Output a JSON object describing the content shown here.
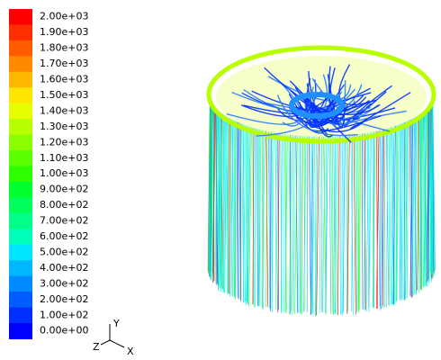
{
  "legend": {
    "items": [
      {
        "label": "2.00e+03",
        "color": "#ff0000"
      },
      {
        "label": "1.90e+03",
        "color": "#ff2e00"
      },
      {
        "label": "1.80e+03",
        "color": "#ff5c00"
      },
      {
        "label": "1.70e+03",
        "color": "#ff8a00"
      },
      {
        "label": "1.60e+03",
        "color": "#ffb800"
      },
      {
        "label": "1.50e+03",
        "color": "#ffe600"
      },
      {
        "label": "1.40e+03",
        "color": "#e6ff00"
      },
      {
        "label": "1.30e+03",
        "color": "#b8ff00"
      },
      {
        "label": "1.20e+03",
        "color": "#8aff00"
      },
      {
        "label": "1.10e+03",
        "color": "#5cff00"
      },
      {
        "label": "1.00e+03",
        "color": "#2eff00"
      },
      {
        "label": "9.00e+02",
        "color": "#00ff2e"
      },
      {
        "label": "8.00e+02",
        "color": "#00ff5c"
      },
      {
        "label": "7.00e+02",
        "color": "#00ff8a"
      },
      {
        "label": "6.00e+02",
        "color": "#00ffb8"
      },
      {
        "label": "5.00e+02",
        "color": "#00e6ff"
      },
      {
        "label": "4.00e+02",
        "color": "#00b8ff"
      },
      {
        "label": "3.00e+02",
        "color": "#008aff"
      },
      {
        "label": "2.00e+02",
        "color": "#005cff"
      },
      {
        "label": "1.00e+02",
        "color": "#002eff"
      },
      {
        "label": "0.00e+00",
        "color": "#0000ff"
      }
    ]
  },
  "axes": {
    "x": "X",
    "y": "Y",
    "z": "Z"
  }
}
